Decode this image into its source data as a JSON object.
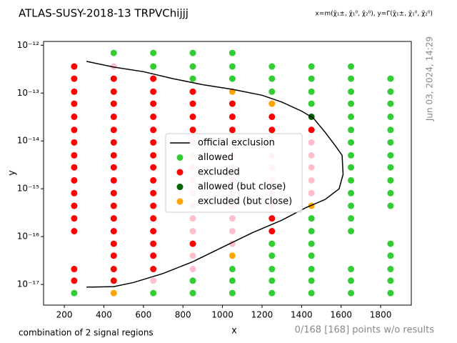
{
  "chart_data": {
    "type": "scatter",
    "title": "ATLAS-SUSY-2018-13 TRPVChijjj",
    "subtitle": "x=m(χ̃₁±, χ̃₁⁰, χ̃₂⁰), y=Γ(χ̃₁±, χ̃₁⁰, χ̃₂⁰)",
    "timestamp": "Jun 03, 2024, 14:29",
    "note_left": "combination of 2 signal regions",
    "note_right": "0/168 [168] points w/o results",
    "x_label": "x",
    "y_label": "y",
    "xlim": [
      95,
      1955
    ],
    "ylim": [
      3.7e-18,
      1.2e-12
    ],
    "y_log": true,
    "xticks": [
      200,
      400,
      600,
      800,
      1000,
      1200,
      1400,
      1600,
      1800
    ],
    "yticks": [
      {
        "value": 1e-17,
        "label": "10⁻¹⁷"
      },
      {
        "value": 1e-16,
        "label": "10⁻¹⁶"
      },
      {
        "value": 1e-15,
        "label": "10⁻¹⁵"
      },
      {
        "value": 1e-14,
        "label": "10⁻¹⁴"
      },
      {
        "value": 1e-13,
        "label": "10⁻¹³"
      },
      {
        "value": 1e-12,
        "label": "10⁻¹²"
      }
    ],
    "exclusion": {
      "name": "official exclusion",
      "color": "#000000",
      "x": [
        312,
        450,
        600,
        750,
        900,
        1050,
        1200,
        1300,
        1400,
        1460,
        1520,
        1570,
        1605,
        1610,
        1590,
        1520,
        1420,
        1300,
        1150,
        1000,
        850,
        700,
        550,
        450,
        312
      ],
      "values": [
        4.6e-13,
        3.5e-13,
        2.8e-13,
        2e-13,
        1.5e-13,
        1.2e-13,
        9e-14,
        6.5e-14,
        4.2e-14,
        3e-14,
        1.5e-14,
        8e-15,
        5e-15,
        2e-15,
        1e-15,
        6e-16,
        4e-16,
        2.2e-16,
        1.2e-16,
        6e-17,
        3e-17,
        1.7e-17,
        1.1e-17,
        9e-18,
        8.8e-18
      ]
    },
    "background": {
      "color": "#ffc0cb",
      "x": [
        450,
        650,
        850,
        850,
        850,
        850,
        850,
        850,
        850,
        850,
        850,
        850,
        1050,
        1050,
        1050,
        1050,
        1050,
        1050,
        1050,
        1050,
        1050,
        1250,
        1250,
        1250,
        1250,
        1250,
        1250,
        1450,
        1450,
        1450,
        1450,
        1450
      ],
      "values": [
        3.6e-13,
        1.2e-17,
        9.3e-15,
        5e-15,
        2.8e-15,
        1.5e-15,
        8.1e-16,
        4.4e-16,
        2.4e-16,
        1.3e-16,
        4e-17,
        2.1e-17,
        9.3e-15,
        5e-15,
        2.8e-15,
        1.5e-15,
        8.1e-16,
        4.4e-16,
        2.4e-16,
        1.3e-16,
        7.1e-17,
        9.3e-15,
        5e-15,
        2.8e-15,
        1.5e-15,
        8.1e-16,
        4.4e-16,
        9.3e-15,
        5e-15,
        2.8e-15,
        1.5e-15,
        8.1e-16
      ]
    },
    "series": [
      {
        "name": "allowed",
        "color": "#32cd32",
        "x": [
          250,
          450,
          650,
          650,
          650,
          850,
          850,
          850,
          850,
          850,
          1050,
          1050,
          1050,
          1050,
          1050,
          1050,
          1250,
          1250,
          1250,
          1250,
          1250,
          1250,
          1250,
          1250,
          1450,
          1450,
          1450,
          1450,
          1450,
          1450,
          1450,
          1450,
          1450,
          1450,
          1450,
          1650,
          1650,
          1650,
          1650,
          1650,
          1650,
          1650,
          1650,
          1650,
          1650,
          1650,
          1650,
          1650,
          1650,
          1650,
          1650,
          1650,
          1850,
          1850,
          1850,
          1850,
          1850,
          1850,
          1850,
          1850,
          1850,
          1850,
          1850,
          1850,
          1850,
          1850,
          1850,
          1850
        ],
        "values": [
          6.6e-18,
          6.9e-13,
          6.9e-13,
          3.6e-13,
          6.6e-18,
          6.9e-13,
          3.6e-13,
          2e-13,
          1.2e-17,
          6.6e-18,
          6.9e-13,
          3.6e-13,
          2e-13,
          2.1e-17,
          1.2e-17,
          6.6e-18,
          3.6e-13,
          2e-13,
          1.07e-13,
          7.1e-17,
          4e-17,
          2.1e-17,
          1.2e-17,
          6.6e-18,
          3.6e-13,
          2e-13,
          1.07e-13,
          6e-14,
          2.4e-16,
          1.3e-16,
          7.1e-17,
          4e-17,
          2.1e-17,
          1.2e-17,
          6.6e-18,
          3.6e-13,
          2e-13,
          1.07e-13,
          6e-14,
          3.2e-14,
          1.7e-14,
          9.3e-15,
          5e-15,
          2.8e-15,
          1.5e-15,
          8.1e-16,
          4.4e-16,
          2.4e-16,
          1.3e-16,
          2.1e-17,
          1.2e-17,
          6.6e-18,
          2e-13,
          1.07e-13,
          6e-14,
          3.2e-14,
          1.7e-14,
          9.3e-15,
          5e-15,
          2.8e-15,
          1.5e-15,
          8.1e-16,
          4.4e-16,
          7.1e-17,
          4e-17,
          2.1e-17,
          1.2e-17,
          6.6e-18
        ]
      },
      {
        "name": "excluded",
        "color": "#ff0000",
        "x": [
          250,
          250,
          250,
          250,
          250,
          250,
          250,
          250,
          250,
          250,
          250,
          250,
          250,
          250,
          250,
          250,
          450,
          450,
          450,
          450,
          450,
          450,
          450,
          450,
          450,
          450,
          450,
          450,
          450,
          450,
          450,
          450,
          450,
          650,
          650,
          650,
          650,
          650,
          650,
          650,
          650,
          650,
          650,
          650,
          650,
          650,
          650,
          650,
          650,
          850,
          850,
          850,
          850,
          850,
          1050,
          1050,
          1050,
          1250,
          1250,
          1250,
          1250,
          1450
        ],
        "values": [
          3.6e-13,
          2e-13,
          1.07e-13,
          6e-14,
          3.2e-14,
          1.7e-14,
          9.3e-15,
          5e-15,
          2.8e-15,
          1.5e-15,
          8.1e-16,
          4.4e-16,
          2.4e-16,
          1.3e-16,
          2.1e-17,
          1.2e-17,
          2e-13,
          1.07e-13,
          6e-14,
          3.2e-14,
          1.7e-14,
          9.3e-15,
          5e-15,
          2.8e-15,
          1.5e-15,
          8.1e-16,
          4.4e-16,
          2.4e-16,
          1.3e-16,
          7.1e-17,
          4e-17,
          2.1e-17,
          1.2e-17,
          2e-13,
          1.07e-13,
          6e-14,
          3.2e-14,
          1.7e-14,
          9.3e-15,
          5e-15,
          2.8e-15,
          1.5e-15,
          8.1e-16,
          4.4e-16,
          2.4e-16,
          1.3e-16,
          7.1e-17,
          4e-17,
          2.1e-17,
          1.07e-13,
          6e-14,
          3.2e-14,
          1.7e-14,
          7.1e-17,
          6e-14,
          3.2e-14,
          1.7e-14,
          3.2e-14,
          1.7e-14,
          2.4e-16,
          1.3e-16,
          1.7e-14
        ]
      },
      {
        "name": "allowed (but close)",
        "color": "#006400",
        "x": [
          1450
        ],
        "values": [
          3.2e-14
        ]
      },
      {
        "name": "excluded (but close)",
        "color": "#ffa500",
        "x": [
          450,
          1050,
          1250,
          1450,
          1050
        ],
        "values": [
          6.6e-18,
          1.07e-13,
          6e-14,
          4.4e-16,
          4e-17
        ]
      }
    ],
    "legend": "center"
  }
}
